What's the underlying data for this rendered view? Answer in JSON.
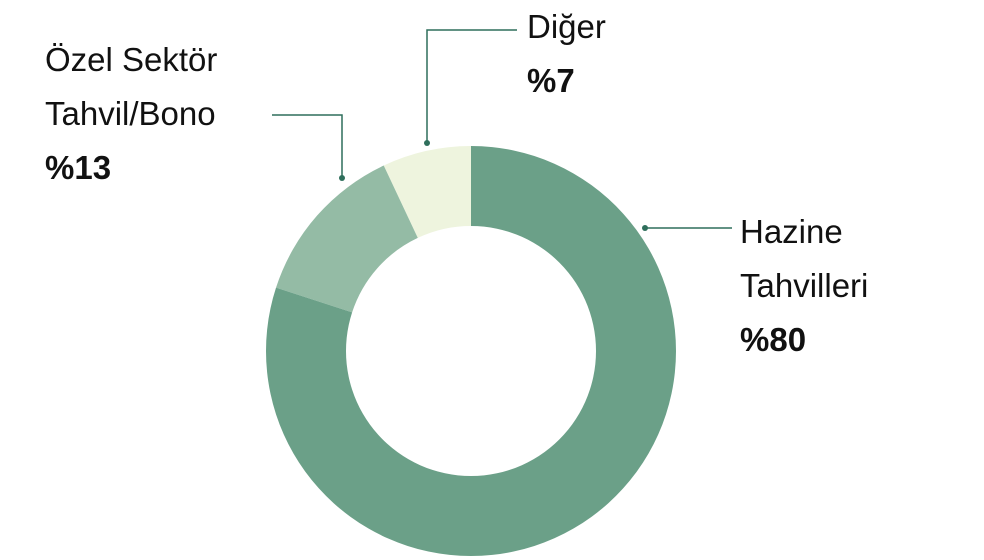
{
  "chart_data": {
    "type": "donut",
    "categories": [
      "Hazine Tahvilleri",
      "Özel Sektör Tahvil/Bono",
      "Diğer"
    ],
    "values": [
      80,
      13,
      7
    ],
    "value_labels": [
      "%80",
      "%13",
      "%7"
    ],
    "colors": [
      "#6ba088",
      "#94bba5",
      "#eef4de"
    ]
  }
}
